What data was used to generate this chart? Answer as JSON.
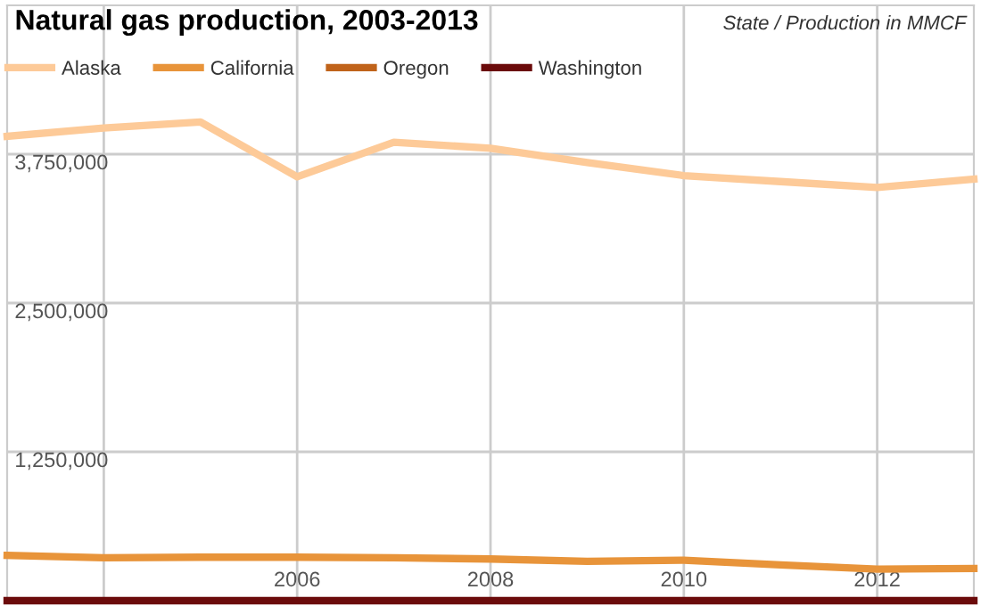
{
  "chart_data": {
    "type": "line",
    "title": "Natural gas production, 2003-2013",
    "subtitle": "State / Production in MMCF",
    "x": [
      2003,
      2004,
      2005,
      2006,
      2007,
      2008,
      2009,
      2010,
      2011,
      2012,
      2013
    ],
    "series": [
      {
        "name": "Alaska",
        "color": "#fdca98",
        "values": [
          3900000,
          3970000,
          4020000,
          3560000,
          3850000,
          3800000,
          3680000,
          3570000,
          3520000,
          3470000,
          3540000
        ]
      },
      {
        "name": "California",
        "color": "#e8943a",
        "values": [
          380000,
          360000,
          365000,
          365000,
          360000,
          350000,
          330000,
          340000,
          300000,
          265000,
          270000
        ]
      },
      {
        "name": "Oregon",
        "color": "#c0631a",
        "values": [
          null,
          null,
          null,
          null,
          null,
          null,
          null,
          null,
          null,
          null,
          null
        ]
      },
      {
        "name": "Washington",
        "color": "#6b0b0b",
        "values": [
          0,
          0,
          0,
          0,
          0,
          0,
          0,
          0,
          0,
          0,
          0
        ]
      }
    ],
    "xlim": [
      2003,
      2013
    ],
    "xticks": [
      {
        "value": 2004,
        "label": null
      },
      2006,
      2008,
      2010,
      2012
    ],
    "ylim": [
      0,
      5000000
    ],
    "yticks": [
      {
        "value": 1250000,
        "label": "1,250,000"
      },
      {
        "value": 2500000,
        "label": "2,500,000"
      },
      {
        "value": 3750000,
        "label": "3,750,000"
      }
    ],
    "grid": true,
    "legend": "top left",
    "marker": "none",
    "line_style": "solid"
  }
}
